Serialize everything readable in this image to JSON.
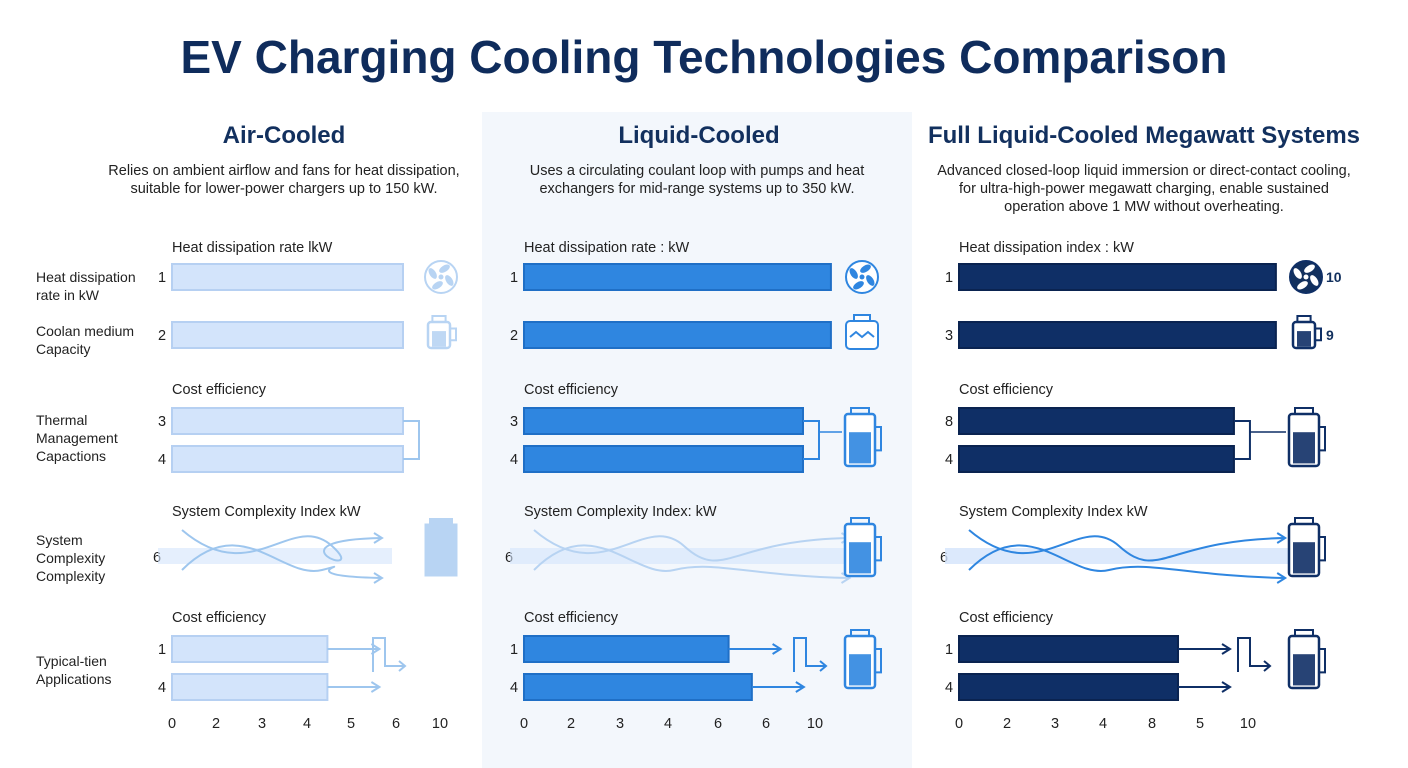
{
  "title": "EV Charging Cooling Technologies Comparison",
  "row_labels": [
    "Heat dissipation rate in kW",
    "Coolan medium Capacity",
    "Thermal Management Capactions",
    "System Complexity Complexity",
    "Typical-tien Applications"
  ],
  "colors": {
    "air": "#d3e4fb",
    "liquid": "#2f86e0",
    "megawatt": "#0f2f66",
    "connector": "#9ec6ee",
    "title": "#0f2c5c"
  },
  "chart_data": {
    "type": "bar",
    "xlim": [
      0,
      10
    ],
    "panels": [
      {
        "name": "Air-Cooled",
        "description": [
          "Relies on ambient airflow and fans for heat dissipation,",
          "suitable for lower-power chargers up to 150 kW."
        ],
        "group_labels": [
          "Heat dissipation rate lkW",
          "Cost efficiency",
          "System Complexity Index kW",
          "Cost efficiency"
        ],
        "bar_labels": [
          "1",
          "2",
          "3",
          "4",
          "6",
          "1",
          "4"
        ],
        "values": [
          5.5,
          5.5,
          5.5,
          5.5,
          5.0,
          3.7,
          3.7
        ],
        "icons": [
          "fan-icon",
          "coolant-tank-icon",
          "",
          "cooling-unit-icon",
          ""
        ],
        "icon_values": [
          "",
          "",
          "",
          "",
          ""
        ],
        "x_ticks": [
          "0",
          "2",
          "3",
          "4",
          "5",
          "6",
          "10"
        ]
      },
      {
        "name": "Liquid-Cooled",
        "description": [
          "Uses a circulating coulant loop with pumps and heat",
          "exchangers for mid-range systems up to 350 kW."
        ],
        "group_labels": [
          "Heat dissipation rate : kW",
          "Cost efficiency",
          "System Complexity Index: kW",
          "Cost efficiency"
        ],
        "bar_labels": [
          "1",
          "2",
          "3",
          "4",
          "6",
          "1",
          "4"
        ],
        "values": [
          6.6,
          6.6,
          6.0,
          6.0,
          7.0,
          4.4,
          4.9
        ],
        "icons": [
          "fan-icon",
          "heat-exchanger-icon",
          "coolant-tank-icon",
          "coolant-tank-icon",
          "coolant-tank-icon"
        ],
        "icon_values": [
          "",
          "",
          "",
          "",
          ""
        ],
        "x_ticks": [
          "0",
          "2",
          "3",
          "4",
          "6",
          "6",
          "10"
        ]
      },
      {
        "name": "Full Liquid-Cooled Megawatt Systems",
        "description": [
          "Advanced closed-loop liquid immersion or direct-contact cooling,",
          "for ultra-high-power megawatt charging, enable sustained",
          "operation above 1 MW without overheating."
        ],
        "group_labels": [
          "Heat dissipation index : kW",
          "Cost efficiency",
          "System Complexity Index kW",
          "Cost efficiency"
        ],
        "bar_labels": [
          "1",
          "3",
          "8",
          "4",
          "6",
          "1",
          "4"
        ],
        "values": [
          6.8,
          6.8,
          5.9,
          5.9,
          7.0,
          4.7,
          4.7
        ],
        "icons": [
          "fan-icon",
          "coolant-tank-icon",
          "coolant-tank-icon",
          "coolant-tank-icon",
          "coolant-tank-icon"
        ],
        "icon_values": [
          "10",
          "9",
          "",
          "",
          ""
        ],
        "x_ticks": [
          "0",
          "2",
          "3",
          "4",
          "8",
          "5",
          "10"
        ]
      }
    ]
  }
}
